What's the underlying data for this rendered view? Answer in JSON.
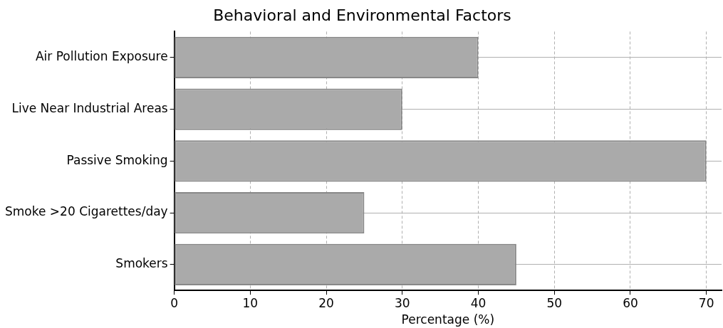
{
  "chart_data": {
    "type": "bar",
    "orientation": "horizontal",
    "title": "Behavioral and Environmental Factors",
    "xlabel": "Percentage (%)",
    "categories": [
      "Air Pollution Exposure",
      "Live Near Industrial Areas",
      "Passive Smoking",
      "Smoke >20 Cigarettes/day",
      "Smokers"
    ],
    "values": [
      40,
      30,
      70,
      25,
      45
    ],
    "color": "#aaaaaa",
    "xlim": [
      0,
      72
    ],
    "xticks": [
      0,
      10,
      20,
      30,
      40,
      50,
      60,
      70
    ],
    "grid": true,
    "legend": false
  }
}
